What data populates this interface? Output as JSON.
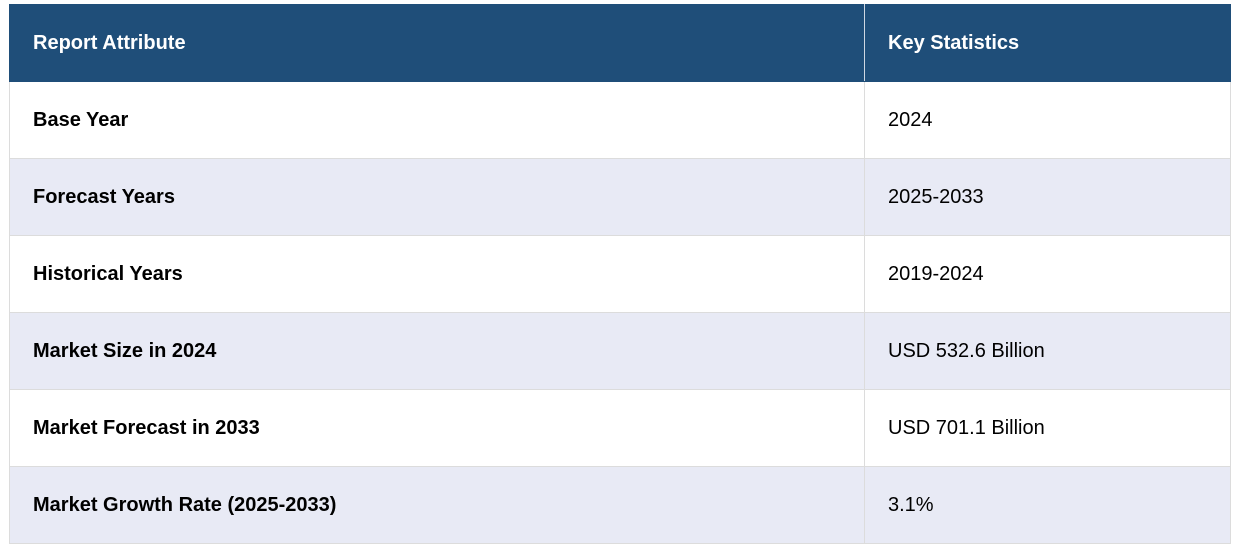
{
  "table": {
    "header": [
      "Report Attribute",
      "Key Statistics"
    ],
    "rows": [
      [
        "Base Year",
        "2024"
      ],
      [
        "Forecast Years",
        "2025-2033"
      ],
      [
        "Historical Years",
        "2019-2024"
      ],
      [
        "Market Size in 2024",
        "USD 532.6 Billion"
      ],
      [
        "Market Forecast in 2033",
        "USD 701.1 Billion"
      ],
      [
        "Market Growth Rate (2025-2033)",
        "3.1%"
      ]
    ]
  }
}
